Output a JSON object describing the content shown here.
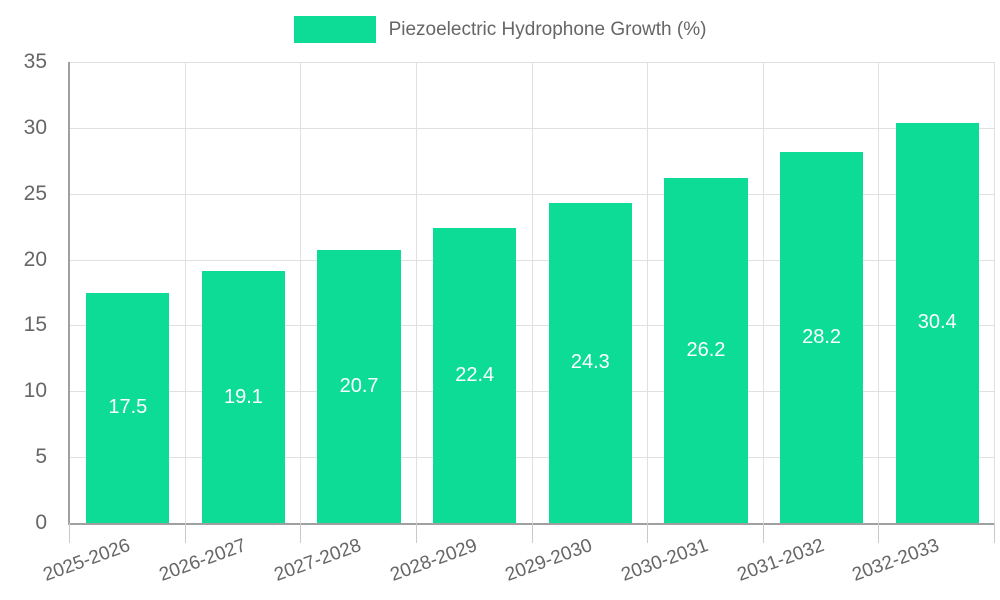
{
  "chart_data": {
    "type": "bar",
    "title": "Piezoelectric Hydrophone Growth (%)",
    "categories": [
      "2025-2026",
      "2026-2027",
      "2027-2028",
      "2028-2029",
      "2029-2030",
      "2030-2031",
      "2031-2032",
      "2032-2033"
    ],
    "values": [
      17.5,
      19.1,
      20.7,
      22.4,
      24.3,
      26.2,
      28.2,
      30.4
    ],
    "bar_labels": [
      "17.5",
      "19.1",
      "20.7",
      "22.4",
      "24.3",
      "26.2",
      "28.2",
      "30.4"
    ],
    "xlabel": "",
    "ylabel": "",
    "ylim": [
      0,
      35
    ],
    "yticks": [
      0,
      5,
      10,
      15,
      20,
      25,
      30,
      35
    ],
    "grid": true,
    "legend_position": "top",
    "colors": {
      "bar": "#0ddc96",
      "text": "#666666",
      "grid": "#e0e0e0",
      "axis": "#a0a0a0",
      "tick": "#c9c9c9",
      "value_label": "#ffffff"
    }
  }
}
